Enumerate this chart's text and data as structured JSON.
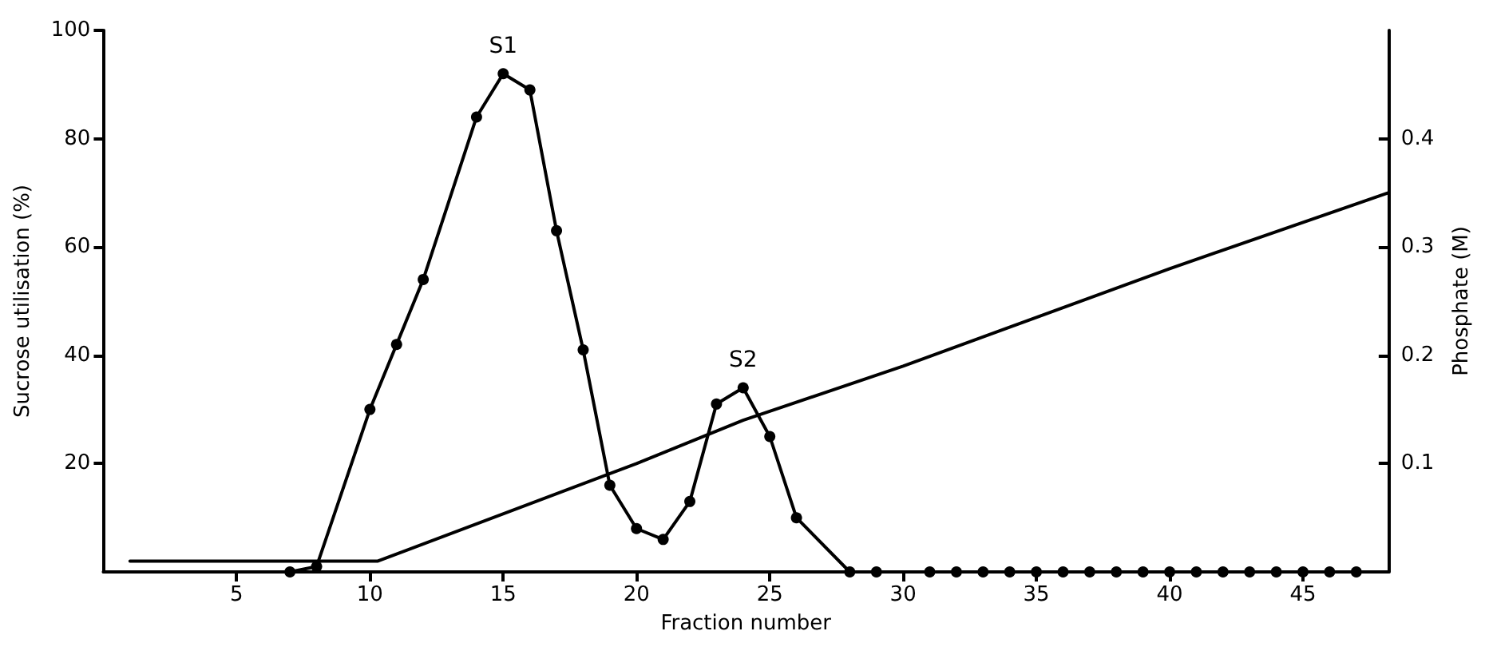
{
  "chart_data": {
    "type": "line",
    "xlabel": "Fraction number",
    "ylabel": "Sucrose utilisation (%)",
    "y2label": "Phosphate (M)",
    "xlim": [
      0,
      48.2
    ],
    "xticks": [
      5,
      10,
      15,
      20,
      25,
      30,
      35,
      40,
      45
    ],
    "ylim": [
      0,
      100
    ],
    "yticks": [
      20,
      40,
      60,
      80,
      100
    ],
    "y2lim": [
      0,
      0.5
    ],
    "y2ticks": [
      0.1,
      0.2,
      0.3,
      0.4
    ],
    "marker": "circle",
    "line_style": "solid",
    "series": [
      {
        "color": "#000000",
        "x": [
          7,
          8,
          10,
          11,
          12,
          14,
          15,
          16,
          17,
          18,
          19,
          20,
          21,
          22,
          23,
          24,
          25,
          26,
          28,
          29,
          31,
          32,
          33,
          34,
          35,
          36,
          37,
          38,
          39,
          40,
          41,
          42,
          43,
          44,
          45,
          46,
          47
        ],
        "values": [
          0,
          1,
          30,
          42,
          54,
          84,
          92,
          89,
          63,
          41,
          16,
          8,
          6,
          13,
          31,
          34,
          25,
          10,
          0,
          0,
          0,
          0,
          0,
          0,
          0,
          0,
          0,
          0,
          0,
          0,
          0,
          0,
          0,
          0,
          0,
          0,
          0
        ]
      },
      {
        "color": "#000000",
        "axis": "y2",
        "marker": "none",
        "x": [
          1,
          10.3,
          20,
          24,
          30,
          40,
          48.2
        ],
        "values": [
          0.01,
          0.01,
          0.1,
          0.14,
          0.19,
          0.28,
          0.35
        ]
      }
    ],
    "annotations": [
      {
        "text": "S1",
        "x": 15,
        "y": 92
      },
      {
        "text": "S2",
        "x": 24,
        "y": 34
      }
    ]
  }
}
